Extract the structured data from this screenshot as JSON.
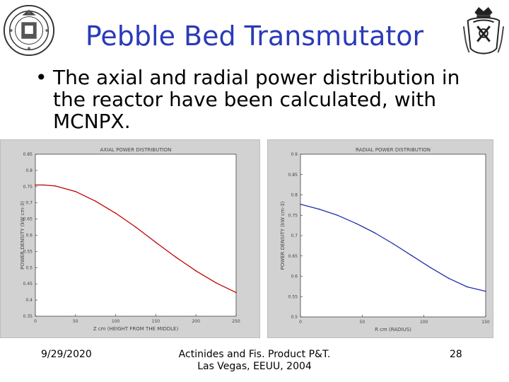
{
  "slide": {
    "title": "Pebble Bed Transmutator",
    "bullet": "The axial and radial power distribution in the reactor have been calculated, with MCNPX.",
    "footer_date": "9/29/2020",
    "footer_center_line1": "Actinides and Fis. Product P&T.",
    "footer_center_line2": "Las Vegas, EEUU, 2004",
    "page_number": "28"
  },
  "colors": {
    "title": "#2a3ab8",
    "axial_line": "#c00000",
    "radial_line": "#1f2ea8",
    "plot_bg": "#ffffff",
    "panel_bg": "#d2d2d2"
  },
  "chart_data": [
    {
      "type": "line",
      "title": "AXIAL POWER DISTRIBUTION",
      "xlabel": "Z cm (HEIGHT FROM THE MIDDLE)",
      "ylabel": "POWER DENSITY (kW cm-3)",
      "xlim": [
        0,
        250
      ],
      "ylim": [
        0.35,
        0.85
      ],
      "xticks": [
        0,
        50,
        100,
        150,
        200,
        250
      ],
      "yticks": [
        0.35,
        0.4,
        0.45,
        0.5,
        0.55,
        0.6,
        0.65,
        0.7,
        0.75,
        0.8,
        0.85
      ],
      "grid": false,
      "series": [
        {
          "color": "#c00000",
          "x": [
            0,
            10,
            25,
            50,
            75,
            100,
            125,
            150,
            175,
            200,
            225,
            250
          ],
          "y": [
            0.755,
            0.755,
            0.752,
            0.735,
            0.705,
            0.668,
            0.625,
            0.578,
            0.532,
            0.49,
            0.453,
            0.423
          ]
        }
      ]
    },
    {
      "type": "line",
      "title": "RADIAL POWER DISTRIBUTION",
      "xlabel": "R cm (RADIUS)",
      "ylabel": "POWER DENSITY (kW cm-3)",
      "xlim": [
        0,
        150
      ],
      "ylim": [
        0.5,
        0.9
      ],
      "xticks": [
        0,
        50,
        100,
        150
      ],
      "yticks": [
        0.5,
        0.55,
        0.6,
        0.65,
        0.7,
        0.75,
        0.8,
        0.85,
        0.9
      ],
      "grid": false,
      "series": [
        {
          "color": "#1f2ea8",
          "x": [
            0,
            15,
            30,
            45,
            60,
            75,
            90,
            105,
            120,
            135,
            150
          ],
          "y": [
            0.777,
            0.765,
            0.75,
            0.73,
            0.707,
            0.68,
            0.651,
            0.622,
            0.595,
            0.574,
            0.563
          ]
        }
      ]
    }
  ]
}
